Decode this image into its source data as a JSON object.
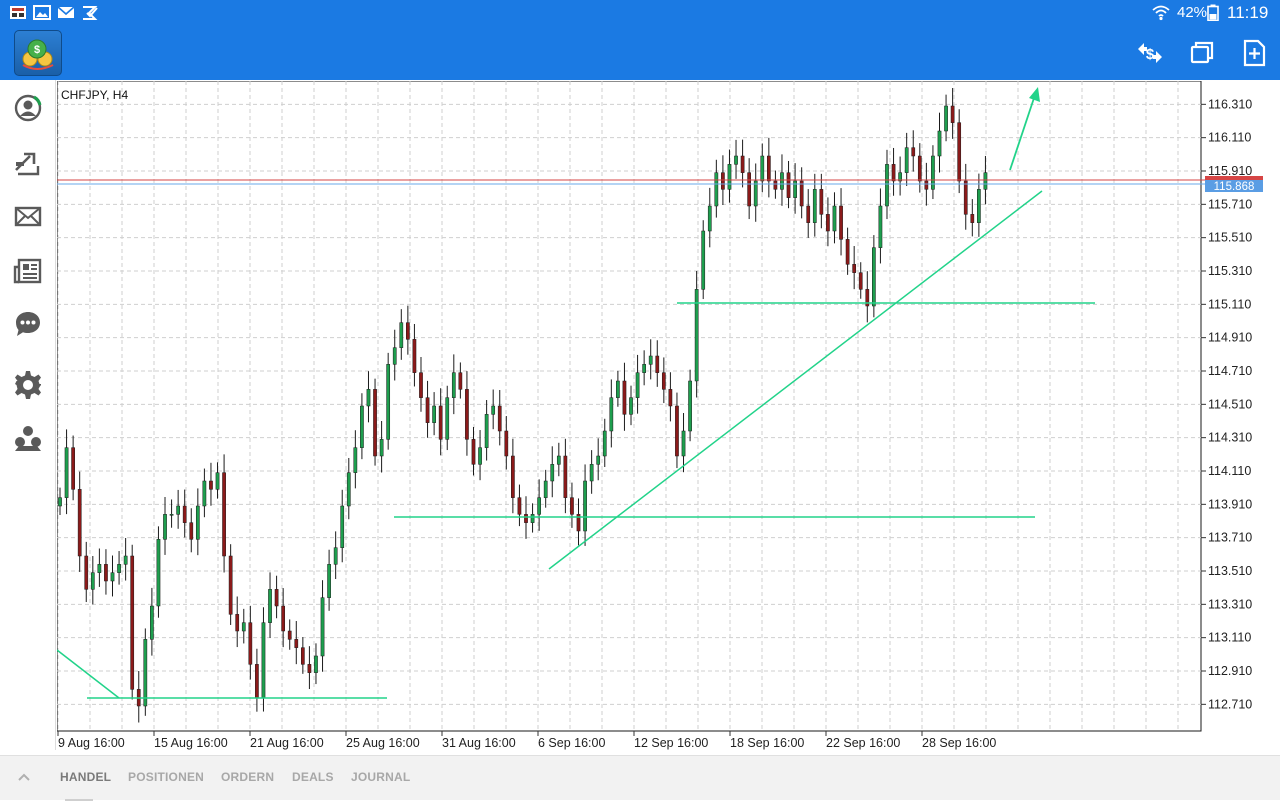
{
  "statusbar": {
    "battery": "42%",
    "time": "11:19",
    "icons": [
      "gallery-app-icon",
      "image-icon",
      "mail-icon",
      "check-icon",
      "wifi-icon",
      "battery-icon"
    ]
  },
  "appbar": {
    "logo": "metatrader-logo-icon",
    "actions": [
      "currency-swap-icon",
      "window-copy-icon",
      "new-document-icon"
    ]
  },
  "sidebar": {
    "items": [
      "account-icon",
      "trade-arrow-icon",
      "mail-icon",
      "news-icon",
      "chat-icon",
      "settings-icon",
      "community-icon"
    ]
  },
  "chart": {
    "symbol_label": "CHFJPY, H4",
    "current_price": "115.868",
    "price_ticks": [
      "116.310",
      "116.110",
      "115.910",
      "115.710",
      "115.510",
      "115.310",
      "115.110",
      "114.910",
      "114.710",
      "114.510",
      "114.310",
      "114.110",
      "113.910",
      "113.710",
      "113.510",
      "113.310",
      "113.110",
      "112.910",
      "112.710"
    ],
    "time_ticks": [
      "9 Aug 16:00",
      "15 Aug 16:00",
      "21 Aug 16:00",
      "25 Aug 16:00",
      "31 Aug 16:00",
      "6 Sep 16:00",
      "12 Sep 16:00",
      "18 Sep 16:00",
      "22 Sep 16:00",
      "28 Sep 16:00"
    ],
    "colors": {
      "up": "#1e9e4e",
      "down": "#8b1a1a",
      "line": "#22d38a",
      "grid": "#cfcfcf",
      "bid": "#d64545",
      "ask": "#6aa8e8",
      "price_tag": "#5a9de4"
    }
  },
  "chart_data": {
    "type": "candlestick",
    "symbol": "CHFJPY",
    "timeframe": "H4",
    "ylim": [
      112.55,
      116.45
    ],
    "closes": [
      113.95,
      114.25,
      114.0,
      113.6,
      113.4,
      113.5,
      113.55,
      113.45,
      113.5,
      113.55,
      113.6,
      112.8,
      112.7,
      113.1,
      113.3,
      113.7,
      113.85,
      113.85,
      113.9,
      113.8,
      113.7,
      113.9,
      114.05,
      114.0,
      114.1,
      113.6,
      113.25,
      113.15,
      113.2,
      112.95,
      112.75,
      113.2,
      113.4,
      113.3,
      113.15,
      113.1,
      113.05,
      112.95,
      112.9,
      113.0,
      113.35,
      113.55,
      113.65,
      113.9,
      114.1,
      114.25,
      114.5,
      114.6,
      114.2,
      114.3,
      114.75,
      114.85,
      115.0,
      114.9,
      114.7,
      114.55,
      114.4,
      114.5,
      114.3,
      114.55,
      114.7,
      114.6,
      114.3,
      114.15,
      114.25,
      114.45,
      114.5,
      114.35,
      114.2,
      113.95,
      113.85,
      113.8,
      113.85,
      113.95,
      114.05,
      114.15,
      114.2,
      113.95,
      113.85,
      113.75,
      114.05,
      114.15,
      114.2,
      114.35,
      114.55,
      114.65,
      114.45,
      114.55,
      114.7,
      114.75,
      114.8,
      114.7,
      114.6,
      114.5,
      114.2,
      114.35,
      114.65,
      115.2,
      115.55,
      115.7,
      115.9,
      115.8,
      115.95,
      116.0,
      115.9,
      115.7,
      115.85,
      116.0,
      115.85,
      115.8,
      115.9,
      115.75,
      115.85,
      115.7,
      115.6,
      115.8,
      115.65,
      115.55,
      115.7,
      115.5,
      115.35,
      115.3,
      115.2,
      115.1,
      115.45,
      115.7,
      115.95,
      115.85,
      115.9,
      116.05,
      116.0,
      115.85,
      115.8,
      116.0,
      116.15,
      116.3,
      116.2,
      115.85,
      115.65,
      115.6,
      115.8,
      115.9
    ]
  },
  "tabs": [
    {
      "label": "HANDEL",
      "active": true
    },
    {
      "label": "POSITIONEN",
      "active": false
    },
    {
      "label": "ORDERN",
      "active": false
    },
    {
      "label": "DEALS",
      "active": false
    },
    {
      "label": "JOURNAL",
      "active": false
    }
  ]
}
